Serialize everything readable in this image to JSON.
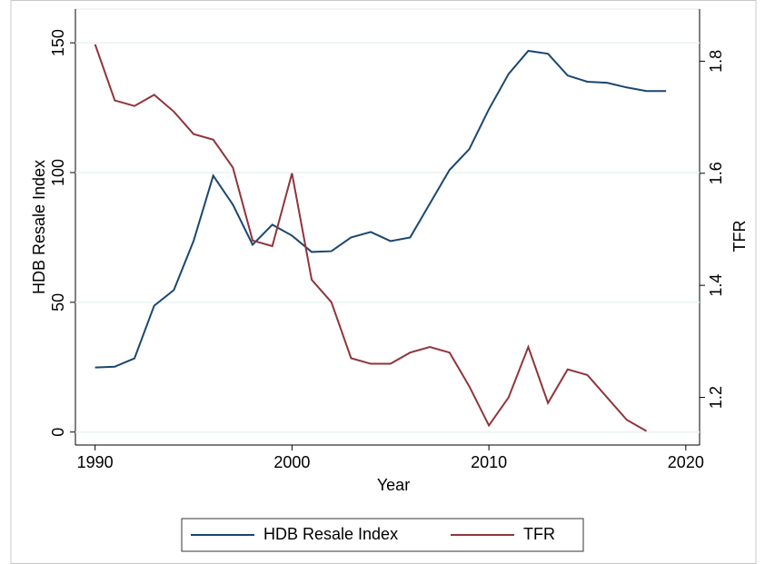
{
  "chart_data": {
    "type": "line",
    "x": [
      1990,
      1991,
      1992,
      1993,
      1994,
      1995,
      1996,
      1997,
      1998,
      1999,
      2000,
      2001,
      2002,
      2003,
      2004,
      2005,
      2006,
      2007,
      2008,
      2009,
      2010,
      2011,
      2012,
      2013,
      2014,
      2015,
      2016,
      2017,
      2018,
      2019
    ],
    "xlabel": "Year",
    "ylabel": "HDB Resale Index",
    "y2label": "TFR",
    "xlim": [
      1989,
      2020.7
    ],
    "xticks": [
      1990,
      2000,
      2010,
      2020
    ],
    "ylim": [
      -5,
      163
    ],
    "yticks": [
      0,
      50,
      100,
      150
    ],
    "y2lim": [
      1.115,
      1.893
    ],
    "y2ticks": [
      1.2,
      1.4,
      1.6,
      1.8
    ],
    "grid": true,
    "legend": "bottom",
    "series": [
      {
        "name": "HDB Resale Index",
        "color": "#1a476f",
        "values": [
          24.9,
          25.2,
          28.4,
          48.7,
          54.7,
          73.6,
          98.8,
          87.6,
          72.2,
          79.9,
          75.7,
          69.4,
          69.7,
          75,
          77.1,
          73.6,
          75,
          88,
          101,
          109,
          124.4,
          138,
          146.9,
          145.8,
          137.4,
          135,
          134.6,
          132.8,
          131.4,
          131.4
        ]
      },
      {
        "name": "TFR",
        "color": "#90353b",
        "axis": "y2",
        "values": [
          1.83,
          1.73,
          1.72,
          1.74,
          1.71,
          1.67,
          1.66,
          1.61,
          1.48,
          1.47,
          1.6,
          1.41,
          1.37,
          1.27,
          1.26,
          1.26,
          1.28,
          1.29,
          1.28,
          1.22,
          1.15,
          1.2,
          1.29,
          1.19,
          1.25,
          1.24,
          1.2,
          1.16,
          1.14,
          null
        ]
      }
    ]
  }
}
